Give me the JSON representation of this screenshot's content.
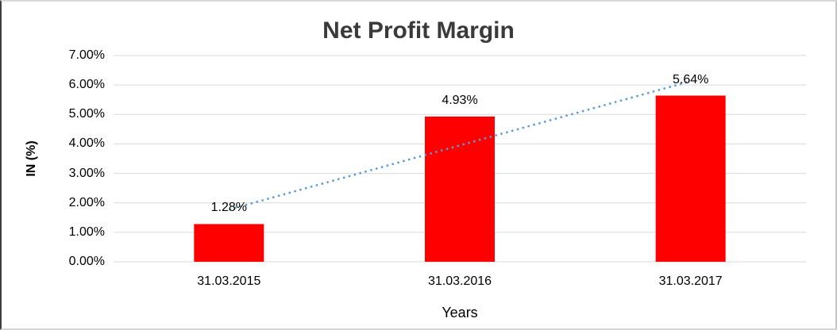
{
  "chart_data": {
    "type": "bar",
    "title": "Net Profit Margin",
    "xlabel": "Years",
    "ylabel": "IN (%)",
    "categories": [
      "31.03.2015",
      "31.03.2016",
      "31.03.2017"
    ],
    "values": [
      1.28,
      4.93,
      5.64
    ],
    "data_labels": [
      "1.28%",
      "4.93%",
      "5.64%"
    ],
    "ylim": [
      0,
      7
    ],
    "ytick_labels": [
      "0.00%",
      "1.00%",
      "2.00%",
      "3.00%",
      "4.00%",
      "5.00%",
      "6.00%",
      "7.00%"
    ],
    "grid": true,
    "legend": "none",
    "bar_color": "#FF0000",
    "gridline_color": "#D9D9D9",
    "text_color": "#000000",
    "title_color": "#3A3A3A",
    "trendline": {
      "type": "linear",
      "style": "dotted",
      "color": "#5B9BD5",
      "start_value": 1.77,
      "end_value": 6.13
    }
  }
}
